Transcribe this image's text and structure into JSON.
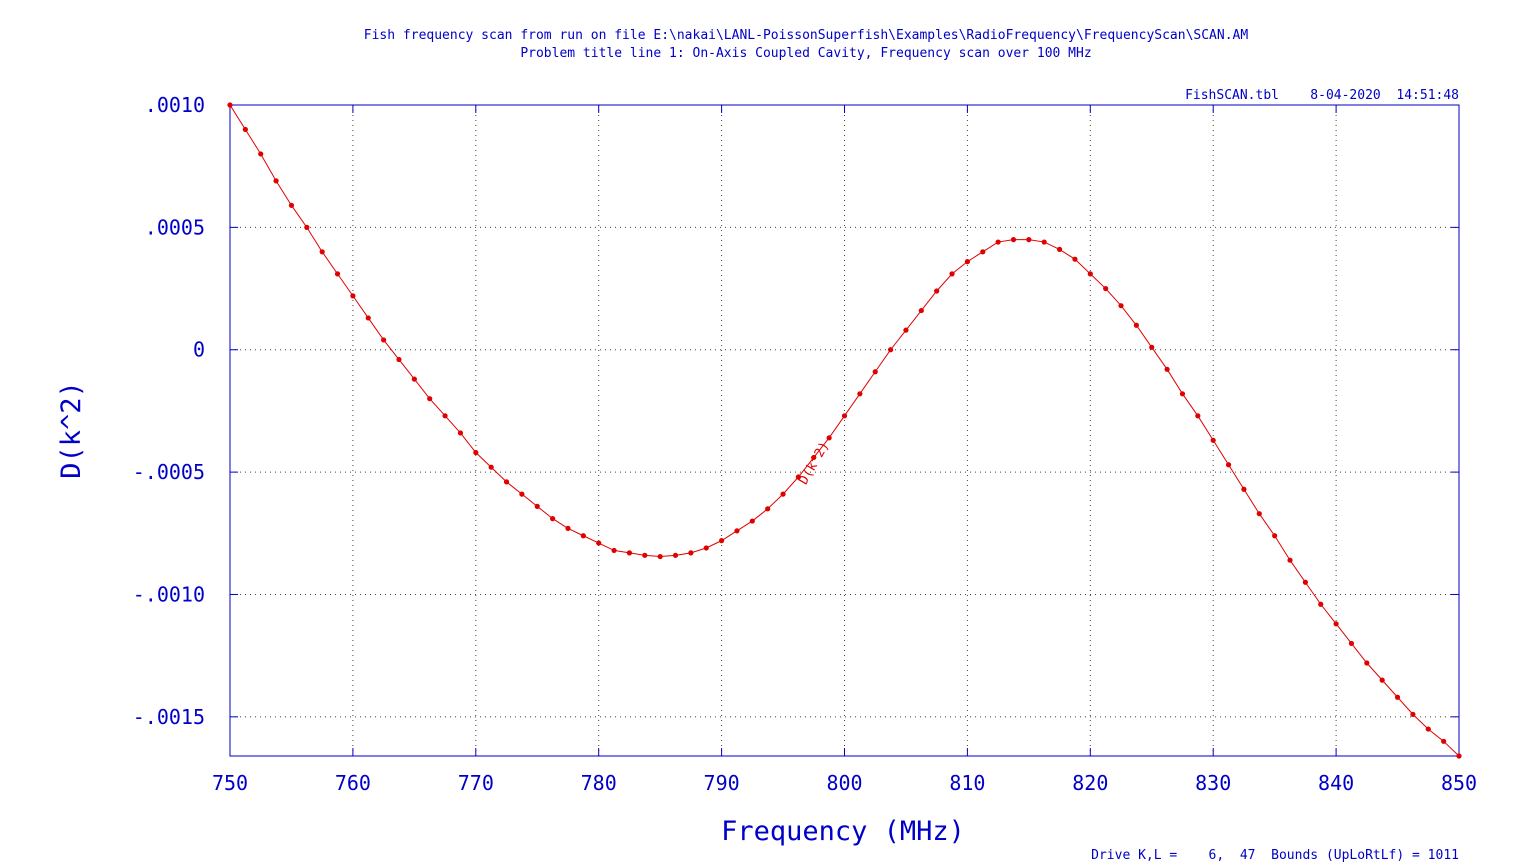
{
  "chart_data": {
    "type": "line",
    "title": "Fish frequency scan from run on file E:\\nakai\\LANL-PoissonSuperfish\\Examples\\RadioFrequency\\FrequencyScan\\SCAN.AM",
    "subtitle": "Problem title line 1: On-Axis Coupled Cavity, Frequency scan over 100 MHz",
    "annotations": [
      "FishSCAN.tbl    8-04-2020  14:51:48",
      "Drive K,L =    6,  47  Bounds (UpLoRtLf) = 1011"
    ],
    "x_label": "Frequency (MHz)",
    "y_label": "D(k^2)",
    "x": [
      750,
      751.25,
      752.5,
      753.75,
      755,
      756.25,
      757.5,
      758.75,
      760,
      761.25,
      762.5,
      763.75,
      765,
      766.25,
      767.5,
      768.75,
      770,
      771.25,
      772.5,
      773.75,
      775,
      776.25,
      777.5,
      778.75,
      780,
      781.25,
      782.5,
      783.75,
      785,
      786.25,
      787.5,
      788.75,
      790,
      791.25,
      792.5,
      793.75,
      795,
      796.25,
      797.5,
      798.75,
      800,
      801.25,
      802.5,
      803.75,
      805,
      806.25,
      807.5,
      808.75,
      810,
      811.25,
      812.5,
      813.75,
      815,
      816.25,
      817.5,
      818.75,
      820,
      821.25,
      822.5,
      823.75,
      825,
      826.25,
      827.5,
      828.75,
      830,
      831.25,
      832.5,
      833.75,
      835,
      836.25,
      837.5,
      838.75,
      840,
      841.25,
      842.5,
      843.75,
      845,
      846.25,
      847.5,
      848.75,
      850
    ],
    "series": [
      {
        "name": "D(k^2)",
        "color": "#e00000",
        "values": [
          0.001,
          0.0009,
          0.0008,
          0.00069,
          0.00059,
          0.0005,
          0.0004,
          0.00031,
          0.00022,
          0.00013,
          4e-05,
          -4e-05,
          -0.00012,
          -0.0002,
          -0.00027,
          -0.00034,
          -0.00042,
          -0.00048,
          -0.00054,
          -0.00059,
          -0.00064,
          -0.00069,
          -0.00073,
          -0.00076,
          -0.00079,
          -0.00082,
          -0.00083,
          -0.00084,
          -0.000845,
          -0.00084,
          -0.00083,
          -0.00081,
          -0.00078,
          -0.00074,
          -0.0007,
          -0.00065,
          -0.00059,
          -0.00052,
          -0.00044,
          -0.00036,
          -0.00027,
          -0.00018,
          -9e-05,
          0.0,
          8e-05,
          0.00016,
          0.00024,
          0.00031,
          0.00036,
          0.0004,
          0.00044,
          0.00045,
          0.00045,
          0.00044,
          0.00041,
          0.00037,
          0.00031,
          0.00025,
          0.00018,
          0.0001,
          1e-05,
          -8e-05,
          -0.00018,
          -0.00027,
          -0.00037,
          -0.00047,
          -0.00057,
          -0.00067,
          -0.00076,
          -0.00086,
          -0.00095,
          -0.00104,
          -0.00112,
          -0.0012,
          -0.00128,
          -0.00135,
          -0.00142,
          -0.00149,
          -0.00155,
          -0.0016,
          -0.00166
        ]
      }
    ],
    "xlim": [
      750,
      850
    ],
    "ylim": [
      -0.00166,
      0.001
    ],
    "xticks": [
      750,
      760,
      770,
      780,
      790,
      800,
      810,
      820,
      830,
      840,
      850
    ],
    "yticks": [
      {
        "value": 0.001,
        "label": ".0010"
      },
      {
        "value": 0.0005,
        "label": ".0005"
      },
      0,
      {
        "value": -0.0005,
        "label": "-.0005"
      },
      {
        "value": -0.001,
        "label": "-.0010"
      },
      {
        "value": -0.0015,
        "label": "-.0015"
      }
    ],
    "grid": true,
    "axis_color": "#0000c8"
  }
}
